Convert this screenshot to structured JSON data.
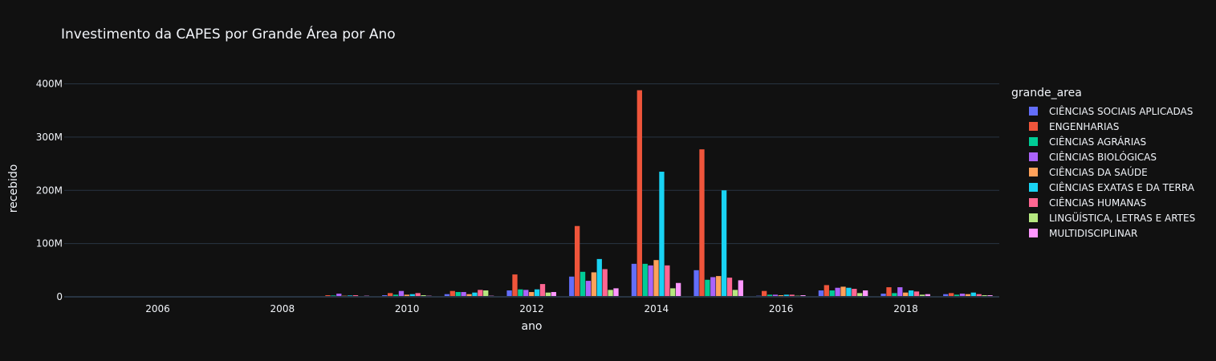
{
  "chart_data": {
    "type": "bar",
    "barmode": "group",
    "title": "Investimento da CAPES por Grande Área por Ano",
    "xlabel": "ano",
    "ylabel": "recebido",
    "x": [
      2005,
      2006,
      2007,
      2008,
      2009,
      2010,
      2011,
      2012,
      2013,
      2014,
      2015,
      2016,
      2017,
      2018,
      2019
    ],
    "xticks": [
      2006,
      2008,
      2010,
      2012,
      2014,
      2016,
      2018
    ],
    "xtick_labels": [
      "2006",
      "2008",
      "2010",
      "2012",
      "2014",
      "2016",
      "2018"
    ],
    "xlim": [
      2004.5,
      2019.5
    ],
    "ylim": [
      0,
      400
    ],
    "yticks": [
      0,
      100,
      200,
      300,
      400
    ],
    "ytick_labels": [
      "0",
      "100M",
      "200M",
      "300M",
      "400M"
    ],
    "y_unit": "M",
    "grid": true,
    "legend_title": "grande_area",
    "legend_position": "right",
    "series": [
      {
        "name": "CIÊNCIAS SOCIAIS APLICADAS",
        "color": "#636efa",
        "values": [
          0.5,
          0.4,
          0.4,
          0.6,
          1.5,
          3,
          5,
          12,
          38,
          62,
          50,
          2,
          12,
          6,
          5
        ]
      },
      {
        "name": "ENGENHARIAS",
        "color": "#ef553b",
        "values": [
          0.8,
          0.6,
          0.6,
          0.8,
          3,
          7,
          11,
          42,
          133,
          388,
          277,
          11,
          22,
          18,
          7
        ]
      },
      {
        "name": "CIÊNCIAS AGRÁRIAS",
        "color": "#00cc96",
        "values": [
          0.5,
          0.4,
          0.4,
          0.6,
          2.5,
          4,
          9,
          14,
          47,
          62,
          32,
          4,
          12,
          7,
          4
        ]
      },
      {
        "name": "CIÊNCIAS BIOLÓGICAS",
        "color": "#ab63fa",
        "values": [
          0.5,
          0.5,
          0.5,
          0.6,
          6,
          11,
          9,
          13,
          30,
          59,
          37,
          4,
          17,
          18,
          6
        ]
      },
      {
        "name": "CIÊNCIAS DA SAÚDE",
        "color": "#ffa15a",
        "values": [
          0.5,
          0.4,
          0.4,
          0.5,
          2,
          4,
          5,
          9,
          46,
          69,
          39,
          3,
          19,
          8,
          5
        ]
      },
      {
        "name": "CIÊNCIAS EXATAS E DA TERRA",
        "color": "#19d3f3",
        "values": [
          0.8,
          0.5,
          0.5,
          0.7,
          2.5,
          5,
          8,
          14,
          71,
          235,
          200,
          4,
          17,
          12,
          8
        ]
      },
      {
        "name": "CIÊNCIAS HUMANAS",
        "color": "#ff6692",
        "values": [
          0.5,
          0.4,
          0.4,
          0.6,
          3,
          7,
          13,
          24,
          52,
          59,
          36,
          4,
          15,
          10,
          5
        ]
      },
      {
        "name": "LINGÜÍSTICA, LETRAS E ARTES",
        "color": "#b6e880",
        "values": [
          0.3,
          0.3,
          0.3,
          0.4,
          1,
          3,
          12,
          8,
          13,
          16,
          13,
          2,
          7,
          4,
          3
        ]
      },
      {
        "name": "MULTIDISCIPLINAR",
        "color": "#ff97ff",
        "values": [
          0.4,
          0.3,
          0.3,
          0.5,
          2,
          2,
          2,
          9,
          16,
          26,
          31,
          3,
          12,
          5,
          3
        ]
      }
    ]
  }
}
